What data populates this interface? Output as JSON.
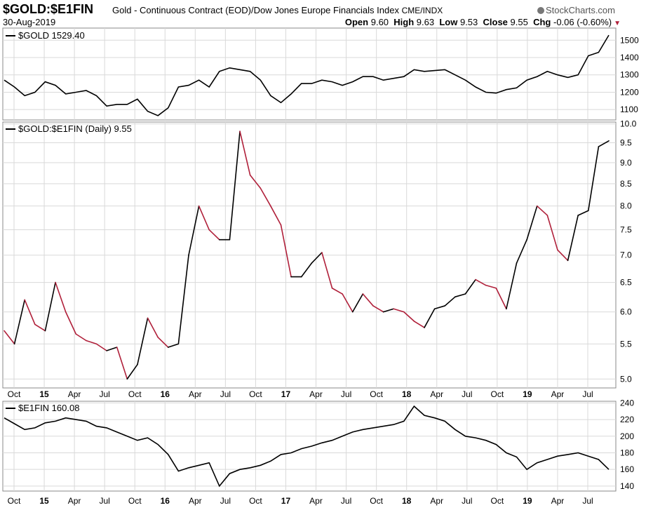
{
  "header": {
    "symbol": "$GOLD:$E1FIN",
    "description": "Gold - Continuous Contract (EOD)/Dow Jones Europe Financials Index",
    "exchange": "CME/INDX",
    "brand": "StockCharts.com",
    "date": "30-Aug-2019",
    "open_label": "Open",
    "open": "9.60",
    "high_label": "High",
    "high": "9.63",
    "low_label": "Low",
    "low": "9.53",
    "close_label": "Close",
    "close": "9.55",
    "chg_label": "Chg",
    "chg": "-0.06 (-0.60%)"
  },
  "colors": {
    "ratio_up": "#000000",
    "ratio_down": "#b0203a",
    "line": "#000000",
    "grid": "#d9d9d9",
    "border": "#888888"
  },
  "chart_data": [
    {
      "type": "line",
      "label": "$GOLD 1529.40",
      "y_ticks": [
        1100,
        1200,
        1300,
        1400,
        1500
      ],
      "ylim": [
        1040,
        1570
      ],
      "x": [
        "2014-09",
        "2014-10",
        "2014-11",
        "2014-12",
        "2015-01",
        "2015-02",
        "2015-03",
        "2015-04",
        "2015-05",
        "2015-06",
        "2015-07",
        "2015-08",
        "2015-09",
        "2015-10",
        "2015-11",
        "2015-12",
        "2016-01",
        "2016-02",
        "2016-03",
        "2016-04",
        "2016-05",
        "2016-06",
        "2016-07",
        "2016-08",
        "2016-09",
        "2016-10",
        "2016-11",
        "2016-12",
        "2017-01",
        "2017-02",
        "2017-03",
        "2017-04",
        "2017-05",
        "2017-06",
        "2017-07",
        "2017-08",
        "2017-09",
        "2017-10",
        "2017-11",
        "2017-12",
        "2018-01",
        "2018-02",
        "2018-03",
        "2018-04",
        "2018-05",
        "2018-06",
        "2018-07",
        "2018-08",
        "2018-09",
        "2018-10",
        "2018-11",
        "2018-12",
        "2019-01",
        "2019-02",
        "2019-03",
        "2019-04",
        "2019-05",
        "2019-06",
        "2019-07",
        "2019-08"
      ],
      "values": [
        1270,
        1230,
        1180,
        1200,
        1260,
        1240,
        1190,
        1200,
        1210,
        1180,
        1120,
        1130,
        1130,
        1160,
        1090,
        1065,
        1110,
        1230,
        1240,
        1270,
        1230,
        1320,
        1340,
        1330,
        1320,
        1270,
        1180,
        1140,
        1190,
        1250,
        1250,
        1270,
        1260,
        1240,
        1260,
        1290,
        1290,
        1270,
        1280,
        1290,
        1330,
        1320,
        1325,
        1330,
        1300,
        1270,
        1230,
        1200,
        1195,
        1215,
        1225,
        1270,
        1290,
        1320,
        1300,
        1285,
        1300,
        1410,
        1430,
        1529
      ]
    },
    {
      "type": "line",
      "label": "$GOLD:$E1FIN (Daily) 9.55",
      "scale": "log",
      "y_ticks": [
        5.0,
        5.5,
        6.0,
        6.5,
        7.0,
        7.5,
        8.0,
        8.5,
        9.0,
        9.5,
        10.0
      ],
      "ylim": [
        4.88,
        10.05
      ],
      "x_tick_labels": [
        "Oct",
        "15",
        "Apr",
        "Jul",
        "Oct",
        "16",
        "Apr",
        "Jul",
        "Oct",
        "17",
        "Apr",
        "Jul",
        "Oct",
        "18",
        "Apr",
        "Jul",
        "Oct",
        "19",
        "Apr",
        "Jul"
      ],
      "x": [
        "2014-09",
        "2014-10",
        "2014-11",
        "2014-12",
        "2015-01",
        "2015-02",
        "2015-03",
        "2015-04",
        "2015-05",
        "2015-06",
        "2015-07",
        "2015-08",
        "2015-09",
        "2015-10",
        "2015-11",
        "2015-12",
        "2016-01",
        "2016-02",
        "2016-03",
        "2016-04",
        "2016-05",
        "2016-06",
        "2016-07",
        "2016-08",
        "2016-09",
        "2016-10",
        "2016-11",
        "2016-12",
        "2017-01",
        "2017-02",
        "2017-03",
        "2017-04",
        "2017-05",
        "2017-06",
        "2017-07",
        "2017-08",
        "2017-09",
        "2017-10",
        "2017-11",
        "2017-12",
        "2018-01",
        "2018-02",
        "2018-03",
        "2018-04",
        "2018-05",
        "2018-06",
        "2018-07",
        "2018-08",
        "2018-09",
        "2018-10",
        "2018-11",
        "2018-12",
        "2019-01",
        "2019-02",
        "2019-03",
        "2019-04",
        "2019-05",
        "2019-06",
        "2019-07",
        "2019-08"
      ],
      "values": [
        5.7,
        5.5,
        6.2,
        5.8,
        5.7,
        6.5,
        6.0,
        5.65,
        5.55,
        5.5,
        5.4,
        5.45,
        5.0,
        5.2,
        5.9,
        5.6,
        5.45,
        5.5,
        7.0,
        8.0,
        7.5,
        7.3,
        7.3,
        9.8,
        8.7,
        8.4,
        8.0,
        7.6,
        6.6,
        6.6,
        6.85,
        7.05,
        6.4,
        6.3,
        6.0,
        6.3,
        6.1,
        6.0,
        6.05,
        6.0,
        5.85,
        5.75,
        6.05,
        6.1,
        6.25,
        6.3,
        6.55,
        6.45,
        6.4,
        6.05,
        6.85,
        7.3,
        8.0,
        7.8,
        7.1,
        6.9,
        7.8,
        7.9,
        9.4,
        9.55
      ]
    },
    {
      "type": "line",
      "label": "$E1FIN 160.08",
      "y_ticks": [
        140,
        160,
        180,
        200,
        220,
        240
      ],
      "ylim": [
        134,
        242
      ],
      "x_tick_labels": [
        "Oct",
        "15",
        "Apr",
        "Jul",
        "Oct",
        "16",
        "Apr",
        "Jul",
        "Oct",
        "17",
        "Apr",
        "Jul",
        "Oct",
        "18",
        "Apr",
        "Jul",
        "Oct",
        "19",
        "Apr",
        "Jul"
      ],
      "x": [
        "2014-09",
        "2014-10",
        "2014-11",
        "2014-12",
        "2015-01",
        "2015-02",
        "2015-03",
        "2015-04",
        "2015-05",
        "2015-06",
        "2015-07",
        "2015-08",
        "2015-09",
        "2015-10",
        "2015-11",
        "2015-12",
        "2016-01",
        "2016-02",
        "2016-03",
        "2016-04",
        "2016-05",
        "2016-06",
        "2016-07",
        "2016-08",
        "2016-09",
        "2016-10",
        "2016-11",
        "2016-12",
        "2017-01",
        "2017-02",
        "2017-03",
        "2017-04",
        "2017-05",
        "2017-06",
        "2017-07",
        "2017-08",
        "2017-09",
        "2017-10",
        "2017-11",
        "2017-12",
        "2018-01",
        "2018-02",
        "2018-03",
        "2018-04",
        "2018-05",
        "2018-06",
        "2018-07",
        "2018-08",
        "2018-09",
        "2018-10",
        "2018-11",
        "2018-12",
        "2019-01",
        "2019-02",
        "2019-03",
        "2019-04",
        "2019-05",
        "2019-06",
        "2019-07",
        "2019-08"
      ],
      "values": [
        222,
        215,
        208,
        210,
        216,
        218,
        222,
        220,
        218,
        212,
        210,
        205,
        200,
        195,
        198,
        190,
        178,
        158,
        162,
        165,
        168,
        140,
        155,
        160,
        162,
        165,
        170,
        178,
        180,
        185,
        188,
        192,
        195,
        200,
        205,
        208,
        210,
        212,
        214,
        218,
        236,
        225,
        222,
        218,
        208,
        200,
        198,
        195,
        190,
        180,
        175,
        160,
        168,
        172,
        176,
        178,
        180,
        176,
        172,
        160
      ]
    }
  ]
}
